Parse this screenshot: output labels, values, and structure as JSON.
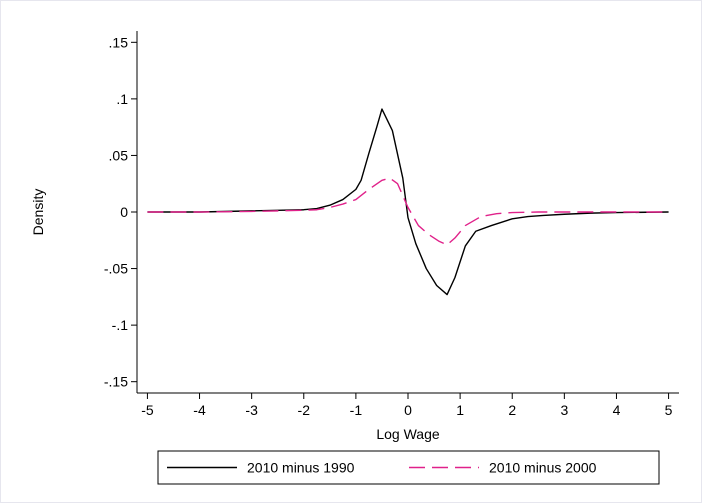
{
  "chart_data": {
    "type": "line",
    "title": "",
    "xlabel": "Log Wage",
    "ylabel": "Density",
    "xlim": [
      -5.2,
      5.2
    ],
    "ylim": [
      -0.16,
      0.16
    ],
    "x_ticks": [
      -5,
      -4,
      -3,
      -2,
      -1,
      0,
      1,
      2,
      3,
      4,
      5
    ],
    "x_tick_labels": [
      "-5",
      "-4",
      "-3",
      "-2",
      "-1",
      "0",
      "1",
      "2",
      "3",
      "4",
      "5"
    ],
    "y_ticks": [
      0.15,
      0.1,
      0.05,
      0,
      -0.05,
      -0.1,
      -0.15
    ],
    "y_tick_labels": [
      ".15",
      ".1",
      ".05",
      "0",
      "-.05",
      "-.1",
      "-.15"
    ],
    "grid": false,
    "legend_position": "bottom",
    "series": [
      {
        "name": "2010 minus 1990",
        "color": "#000000",
        "style": "solid",
        "x": [
          -5,
          -4,
          -3,
          -2.5,
          -2,
          -1.75,
          -1.5,
          -1.25,
          -1,
          -0.9,
          -0.75,
          -0.6,
          -0.5,
          -0.3,
          -0.1,
          0,
          0.15,
          0.35,
          0.55,
          0.75,
          0.9,
          1.1,
          1.3,
          1.6,
          2,
          2.3,
          2.6,
          3,
          3.5,
          4,
          5
        ],
        "y": [
          0,
          0,
          0.001,
          0.0015,
          0.002,
          0.003,
          0.006,
          0.011,
          0.02,
          0.028,
          0.052,
          0.075,
          0.091,
          0.072,
          0.03,
          -0.005,
          -0.028,
          -0.05,
          -0.065,
          -0.073,
          -0.058,
          -0.03,
          -0.017,
          -0.012,
          -0.006,
          -0.004,
          -0.003,
          -0.002,
          -0.001,
          -0.0005,
          0
        ]
      },
      {
        "name": "2010 minus 2000",
        "color": "#e0218a",
        "style": "dashed",
        "x": [
          -5,
          -4,
          -3,
          -2.5,
          -2,
          -1.75,
          -1.5,
          -1.25,
          -1,
          -0.75,
          -0.5,
          -0.35,
          -0.2,
          0,
          0.2,
          0.4,
          0.6,
          0.75,
          0.9,
          1.1,
          1.4,
          1.7,
          2,
          2.5,
          3,
          4,
          5
        ],
        "y": [
          0,
          0,
          0.0005,
          0.001,
          0.0015,
          0.002,
          0.004,
          0.007,
          0.011,
          0.02,
          0.028,
          0.03,
          0.025,
          0.004,
          -0.012,
          -0.02,
          -0.026,
          -0.029,
          -0.023,
          -0.012,
          -0.004,
          -0.0015,
          -0.0005,
          0,
          0,
          0,
          0
        ]
      }
    ]
  }
}
